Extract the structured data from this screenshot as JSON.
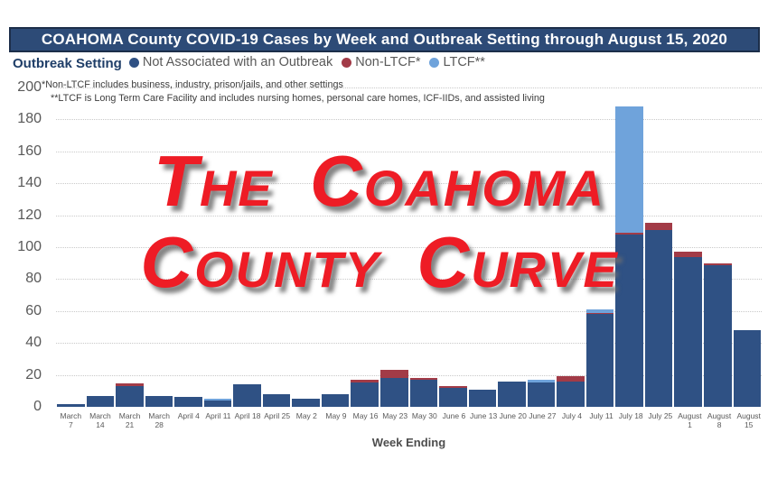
{
  "header": {
    "title": "COAHOMA County COVID-19 Cases by Week and Outbreak Setting through August 15, 2020",
    "banner_color": "#2d4b77"
  },
  "legend": {
    "label": "Outbreak Setting",
    "items": [
      {
        "label": "Not Associated with an Outbreak",
        "color": "#2f5184"
      },
      {
        "label": "Non-LTCF*",
        "color": "#a23b47"
      },
      {
        "label": "LTCF**",
        "color": "#6fa3db"
      }
    ]
  },
  "footnotes": {
    "line1": "*Non-LTCF includes business, industry, prison/jails, and other settings",
    "line2": "**LTCF is Long Term Care Facility and includes nursing homes, personal care homes, ICF-IIDs, and assisted living"
  },
  "overlay": {
    "line1": "The Coahoma",
    "line2": "County Curve",
    "color": "#ee1c25"
  },
  "chart_data": {
    "type": "bar",
    "stacked": true,
    "title": "COAHOMA County COVID-19 Cases by Week and Outbreak Setting through August 15, 2020",
    "xlabel": "Week Ending",
    "ylabel": "",
    "ylim": [
      0,
      200
    ],
    "yticks": [
      0,
      20,
      40,
      60,
      80,
      100,
      120,
      140,
      160,
      180,
      200
    ],
    "grid": "dotted horizontal",
    "legend_position": "top",
    "categories": [
      "March 7",
      "March 14",
      "March 21",
      "March 28",
      "April 4",
      "April 11",
      "April 18",
      "April 25",
      "May 2",
      "May 9",
      "May 16",
      "May 23",
      "May 30",
      "June 6",
      "June 13",
      "June 20",
      "June 27",
      "July 4",
      "July 11",
      "July 18",
      "July 25",
      "August 1",
      "August 8",
      "August 15"
    ],
    "series": [
      {
        "name": "Not Associated with an Outbreak",
        "color": "#2f5184",
        "values": [
          2,
          7,
          13,
          7,
          6,
          4,
          14,
          8,
          5,
          8,
          15,
          18,
          17,
          12,
          11,
          16,
          15,
          16,
          58,
          108,
          111,
          94,
          89,
          48
        ]
      },
      {
        "name": "Non-LTCF*",
        "color": "#a23b47",
        "values": [
          0,
          0,
          2,
          0,
          0,
          0,
          0,
          0,
          0,
          0,
          2,
          5,
          1,
          1,
          0,
          0,
          0,
          3,
          1,
          1,
          4,
          3,
          1,
          0
        ]
      },
      {
        "name": "LTCF**",
        "color": "#6fa3db",
        "values": [
          0,
          0,
          0,
          0,
          0,
          1,
          0,
          0,
          0,
          0,
          0,
          0,
          0,
          0,
          0,
          0,
          2,
          0,
          2,
          79,
          0,
          0,
          0,
          0
        ]
      }
    ]
  }
}
